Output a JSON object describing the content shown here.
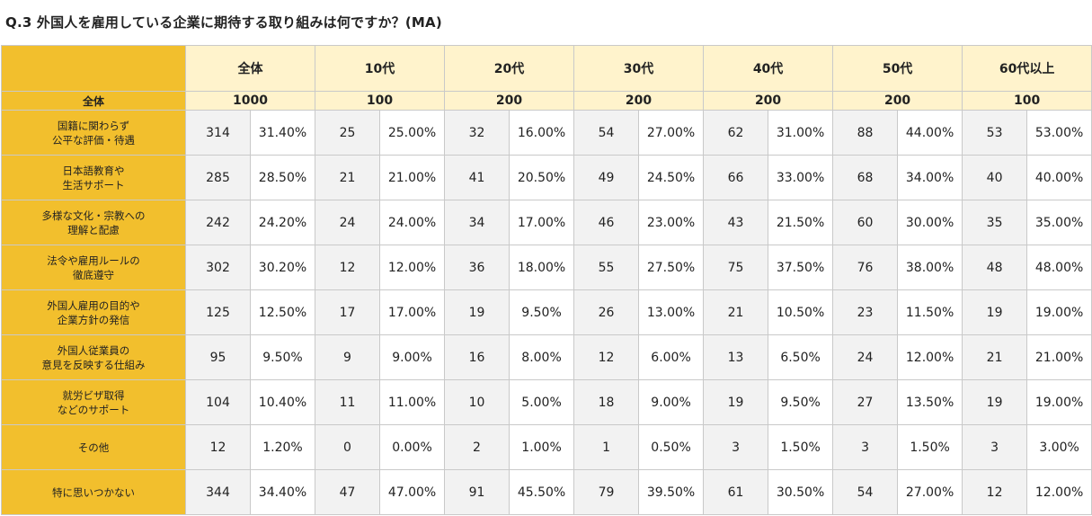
{
  "title": "Q.3 外国人を雇用している企業に期待する取り組みは何ですか？(MA)",
  "chart_data": {
    "type": "table",
    "total_row_label": "全体",
    "columns": [
      {
        "label": "全体",
        "total": "1000"
      },
      {
        "label": "10代",
        "total": "100"
      },
      {
        "label": "20代",
        "total": "200"
      },
      {
        "label": "30代",
        "total": "200"
      },
      {
        "label": "40代",
        "total": "200"
      },
      {
        "label": "50代",
        "total": "200"
      },
      {
        "label": "60代以上",
        "total": "100"
      }
    ],
    "rows": [
      {
        "label": [
          "国籍に関わらず",
          "公平な評価・待遇"
        ],
        "cells": [
          [
            "314",
            "31.40%"
          ],
          [
            "25",
            "25.00%"
          ],
          [
            "32",
            "16.00%"
          ],
          [
            "54",
            "27.00%"
          ],
          [
            "62",
            "31.00%"
          ],
          [
            "88",
            "44.00%"
          ],
          [
            "53",
            "53.00%"
          ]
        ]
      },
      {
        "label": [
          "日本語教育や",
          "生活サポート"
        ],
        "cells": [
          [
            "285",
            "28.50%"
          ],
          [
            "21",
            "21.00%"
          ],
          [
            "41",
            "20.50%"
          ],
          [
            "49",
            "24.50%"
          ],
          [
            "66",
            "33.00%"
          ],
          [
            "68",
            "34.00%"
          ],
          [
            "40",
            "40.00%"
          ]
        ]
      },
      {
        "label": [
          "多様な文化・宗教への",
          "理解と配慮"
        ],
        "cells": [
          [
            "242",
            "24.20%"
          ],
          [
            "24",
            "24.00%"
          ],
          [
            "34",
            "17.00%"
          ],
          [
            "46",
            "23.00%"
          ],
          [
            "43",
            "21.50%"
          ],
          [
            "60",
            "30.00%"
          ],
          [
            "35",
            "35.00%"
          ]
        ]
      },
      {
        "label": [
          "法令や雇用ルールの",
          "徹底遵守"
        ],
        "cells": [
          [
            "302",
            "30.20%"
          ],
          [
            "12",
            "12.00%"
          ],
          [
            "36",
            "18.00%"
          ],
          [
            "55",
            "27.50%"
          ],
          [
            "75",
            "37.50%"
          ],
          [
            "76",
            "38.00%"
          ],
          [
            "48",
            "48.00%"
          ]
        ]
      },
      {
        "label": [
          "外国人雇用の目的や",
          "企業方針の発信"
        ],
        "cells": [
          [
            "125",
            "12.50%"
          ],
          [
            "17",
            "17.00%"
          ],
          [
            "19",
            "9.50%"
          ],
          [
            "26",
            "13.00%"
          ],
          [
            "21",
            "10.50%"
          ],
          [
            "23",
            "11.50%"
          ],
          [
            "19",
            "19.00%"
          ]
        ]
      },
      {
        "label": [
          "外国人従業員の",
          "意見を反映する仕組み"
        ],
        "cells": [
          [
            "95",
            "9.50%"
          ],
          [
            "9",
            "9.00%"
          ],
          [
            "16",
            "8.00%"
          ],
          [
            "12",
            "6.00%"
          ],
          [
            "13",
            "6.50%"
          ],
          [
            "24",
            "12.00%"
          ],
          [
            "21",
            "21.00%"
          ]
        ]
      },
      {
        "label": [
          "就労ビザ取得",
          "などのサポート"
        ],
        "cells": [
          [
            "104",
            "10.40%"
          ],
          [
            "11",
            "11.00%"
          ],
          [
            "10",
            "5.00%"
          ],
          [
            "18",
            "9.00%"
          ],
          [
            "19",
            "9.50%"
          ],
          [
            "27",
            "13.50%"
          ],
          [
            "19",
            "19.00%"
          ]
        ]
      },
      {
        "label": [
          "その他"
        ],
        "cells": [
          [
            "12",
            "1.20%"
          ],
          [
            "0",
            "0.00%"
          ],
          [
            "2",
            "1.00%"
          ],
          [
            "1",
            "0.50%"
          ],
          [
            "3",
            "1.50%"
          ],
          [
            "3",
            "1.50%"
          ],
          [
            "3",
            "3.00%"
          ]
        ]
      },
      {
        "label": [
          "特に思いつかない"
        ],
        "cells": [
          [
            "344",
            "34.40%"
          ],
          [
            "47",
            "47.00%"
          ],
          [
            "91",
            "45.50%"
          ],
          [
            "79",
            "39.50%"
          ],
          [
            "61",
            "30.50%"
          ],
          [
            "54",
            "27.00%"
          ],
          [
            "12",
            "12.00%"
          ]
        ]
      }
    ]
  }
}
